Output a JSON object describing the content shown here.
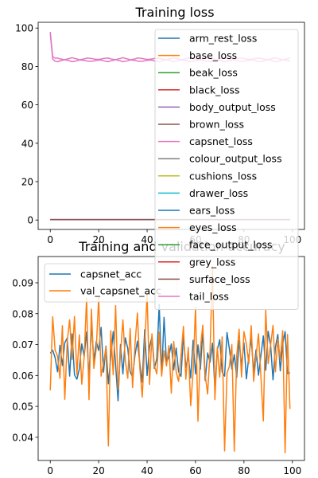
{
  "chart_data": [
    {
      "type": "line",
      "title": "Training loss",
      "xlabel": "",
      "ylabel": "",
      "xlim": [
        -5,
        105
      ],
      "ylim": [
        -4.9,
        103
      ],
      "xticks": [
        0,
        20,
        40,
        60,
        80,
        100
      ],
      "yticks": [
        0,
        20,
        40,
        60,
        80,
        100
      ],
      "grid": false,
      "legend_position": "upper right",
      "series": [
        {
          "name": "arm_rest_loss",
          "color": "#1f77b4",
          "shape": "flat",
          "start": 0.2,
          "end": 0.2
        },
        {
          "name": "base_loss",
          "color": "#ff7f0e",
          "shape": "flat",
          "start": 0.2,
          "end": 0.2
        },
        {
          "name": "beak_loss",
          "color": "#2ca02c",
          "shape": "flat",
          "start": 0.2,
          "end": 0.2
        },
        {
          "name": "black_loss",
          "color": "#d62728",
          "shape": "flat",
          "start": 0.2,
          "end": 0.2
        },
        {
          "name": "body_output_loss",
          "color": "#9467bd",
          "shape": "flat",
          "start": 0.3,
          "end": 0.3
        },
        {
          "name": "brown_loss",
          "color": "#8c564b",
          "shape": "flat",
          "start": 0.2,
          "end": 0.2
        },
        {
          "name": "capsnet_loss",
          "color": "#e377c2",
          "shape": "decay",
          "start": 98,
          "end": 84
        },
        {
          "name": "colour_output_loss",
          "color": "#7f7f7f",
          "shape": "flat",
          "start": 0.2,
          "end": 0.2
        },
        {
          "name": "cushions_loss",
          "color": "#bcbd22",
          "shape": "flat",
          "start": 0.2,
          "end": 0.2
        },
        {
          "name": "drawer_loss",
          "color": "#17becf",
          "shape": "flat",
          "start": 0.2,
          "end": 0.2
        },
        {
          "name": "ears_loss",
          "color": "#1f77b4",
          "shape": "flat",
          "start": 0.2,
          "end": 0.2
        },
        {
          "name": "eyes_loss",
          "color": "#ff7f0e",
          "shape": "flat",
          "start": 0.2,
          "end": 0.2
        },
        {
          "name": "face_output_loss",
          "color": "#2ca02c",
          "shape": "flat",
          "start": 0.2,
          "end": 0.2
        },
        {
          "name": "grey_loss",
          "color": "#d62728",
          "shape": "flat",
          "start": 0.2,
          "end": 0.2
        },
        {
          "name": "surface_loss",
          "color": "#8c564b",
          "shape": "flat",
          "start": 0.2,
          "end": 0.2
        },
        {
          "name": "tail_loss",
          "color": "#e377c2",
          "shape": "decay",
          "start": 97,
          "end": 83
        }
      ]
    },
    {
      "type": "line",
      "title": "Training and validation accuracy",
      "xlabel": "",
      "ylabel": "",
      "xlim": [
        -5,
        105
      ],
      "ylim": [
        0.0325,
        0.0985
      ],
      "xticks": [
        0,
        20,
        40,
        60,
        80,
        100
      ],
      "yticks": [
        0.04,
        0.05,
        0.06,
        0.07,
        0.08,
        0.09
      ],
      "grid": false,
      "legend_position": "upper left",
      "series": [
        {
          "name": "capsnet_acc",
          "color": "#1f77b4",
          "values": [
            0.0672,
            0.0682,
            0.0658,
            0.0612,
            0.0698,
            0.0632,
            0.0706,
            0.0721,
            0.0598,
            0.0735,
            0.0602,
            0.0588,
            0.0621,
            0.0702,
            0.0662,
            0.0741,
            0.0591,
            0.0768,
            0.0647,
            0.071,
            0.0681,
            0.0756,
            0.0611,
            0.0695,
            0.0573,
            0.066,
            0.0742,
            0.0633,
            0.0518,
            0.07,
            0.0605,
            0.0722,
            0.0688,
            0.0612,
            0.0595,
            0.0667,
            0.0711,
            0.0639,
            0.0578,
            0.0748,
            0.06,
            0.0693,
            0.0725,
            0.0623,
            0.0655,
            0.083,
            0.0601,
            0.0788,
            0.0641,
            0.0662,
            0.0702,
            0.0618,
            0.0689,
            0.0612,
            0.0597,
            0.0731,
            0.0626,
            0.0663,
            0.0592,
            0.0714,
            0.0605,
            0.0699,
            0.062,
            0.0746,
            0.0584,
            0.0673,
            0.0643,
            0.0705,
            0.0558,
            0.0684,
            0.0716,
            0.0611,
            0.0598,
            0.0739,
            0.0685,
            0.0621,
            0.0668,
            0.0594,
            0.0713,
            0.0632,
            0.0706,
            0.0589,
            0.066,
            0.0719,
            0.0612,
            0.0683,
            0.0601,
            0.0665,
            0.0728,
            0.0617,
            0.0743,
            0.0699,
            0.0586,
            0.0692,
            0.0733,
            0.0615,
            0.0702,
            0.0742,
            0.0606,
            0.0609
          ]
        },
        {
          "name": "val_capsnet_acc",
          "color": "#ff7f0e",
          "values": [
            0.0552,
            0.079,
            0.0682,
            0.0663,
            0.0591,
            0.0761,
            0.0523,
            0.071,
            0.078,
            0.0652,
            0.0791,
            0.0602,
            0.0732,
            0.0572,
            0.066,
            0.085,
            0.0522,
            0.0815,
            0.0623,
            0.0688,
            0.0852,
            0.0598,
            0.064,
            0.0692,
            0.0372,
            0.0745,
            0.0602,
            0.0826,
            0.0555,
            0.0668,
            0.078,
            0.0648,
            0.0591,
            0.0752,
            0.0561,
            0.0701,
            0.0802,
            0.0623,
            0.053,
            0.0698,
            0.0863,
            0.0571,
            0.0735,
            0.0632,
            0.0605,
            0.074,
            0.0598,
            0.068,
            0.0631,
            0.0697,
            0.0543,
            0.071,
            0.0612,
            0.0581,
            0.0665,
            0.0759,
            0.0588,
            0.0691,
            0.0502,
            0.0612,
            0.0822,
            0.0452,
            0.0689,
            0.0763,
            0.0601,
            0.054,
            0.068,
            0.0952,
            0.0522,
            0.0691,
            0.0595,
            0.0725,
            0.0356,
            0.0608,
            0.063,
            0.07,
            0.0355,
            0.0663,
            0.075,
            0.0595,
            0.0742,
            0.0701,
            0.0639,
            0.0761,
            0.0581,
            0.0662,
            0.0735,
            0.0598,
            0.0453,
            0.0812,
            0.0638,
            0.0698,
            0.0762,
            0.0612,
            0.0718,
            0.0652,
            0.0745,
            0.035,
            0.0733,
            0.0492
          ]
        }
      ]
    }
  ]
}
